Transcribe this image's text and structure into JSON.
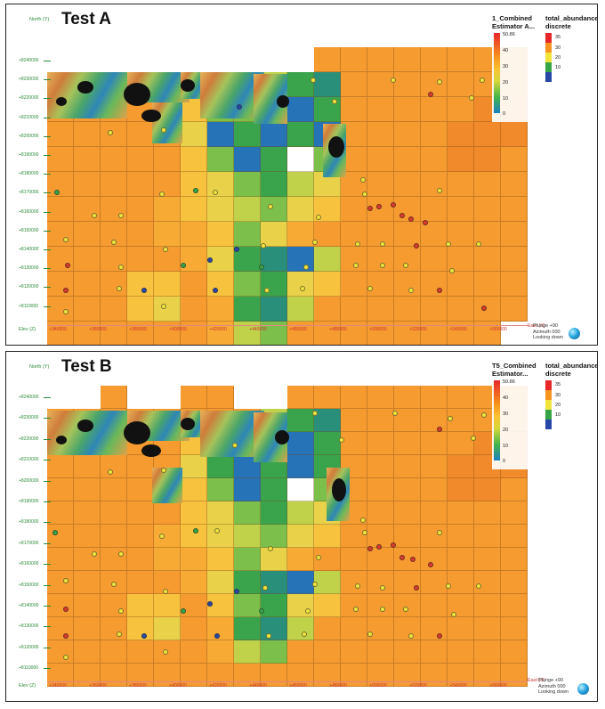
{
  "colors": {
    "dot_red": "#d83a2a",
    "dot_yellow": "#f2e43a",
    "dot_green": "#35a548",
    "dot_blue": "#2848a8",
    "cell_default": "#f59b30",
    "axis_y": "#2a8a3a",
    "axis_x": "#cc3333"
  },
  "panelA": {
    "title": "Test A",
    "north_label": "North (Y)",
    "elev_label": "Elev (Z)",
    "east_label": "East (X)",
    "orientation": [
      "Plunge +90",
      "Azimuth 000",
      "Looking down"
    ],
    "legend": {
      "continuous_title": "1_Combined Estimator A...",
      "continuous_max": "50.86",
      "continuous_ticks": [
        "40",
        "30",
        "20",
        "10",
        "0"
      ],
      "discrete_title": "total_abundance discrete",
      "discrete_labels": [
        "35",
        "30",
        "20",
        "10"
      ]
    },
    "y_ticks": [
      "+8240000",
      "+8230000",
      "+8220000",
      "+8210000",
      "+8200000",
      "+8190000",
      "+8180000",
      "+8170000",
      "+8160000",
      "+8150000",
      "+8140000",
      "+8130000",
      "+8120000",
      "+8110000"
    ],
    "x_ticks": [
      "+340000",
      "+360000",
      "+380000",
      "+400000",
      "+420000",
      "+440000",
      "+460000",
      "+480000",
      "+500000",
      "+520000",
      "+540000",
      "+560000"
    ]
  },
  "panelB": {
    "title": "Test B",
    "north_label": "North (Y)",
    "elev_label": "Elev (Z)",
    "east_label": "East (X)",
    "orientation": [
      "Plunge +90",
      "Azimuth 000",
      "Looking down"
    ],
    "legend": {
      "continuous_title": "T5_Combined Estimator...",
      "continuous_max": "50.86",
      "continuous_ticks": [
        "40",
        "30",
        "20",
        "10",
        "0"
      ],
      "discrete_title": "total_abundance discrete",
      "discrete_labels": [
        "35",
        "30",
        "20",
        "10"
      ]
    },
    "y_ticks": [
      "+8240000",
      "+8230000",
      "+8220000",
      "+8210000",
      "+8200000",
      "+8190000",
      "+8180000",
      "+8170000",
      "+8160000",
      "+8150000",
      "+8140000",
      "+8130000",
      "+8120000",
      "+8110000"
    ],
    "x_ticks": [
      "+340000",
      "+360000",
      "+380000",
      "+400000",
      "+420000",
      "+440000",
      "+460000",
      "+480000",
      "+500000",
      "+520000",
      "+540000",
      "+560000"
    ]
  }
}
